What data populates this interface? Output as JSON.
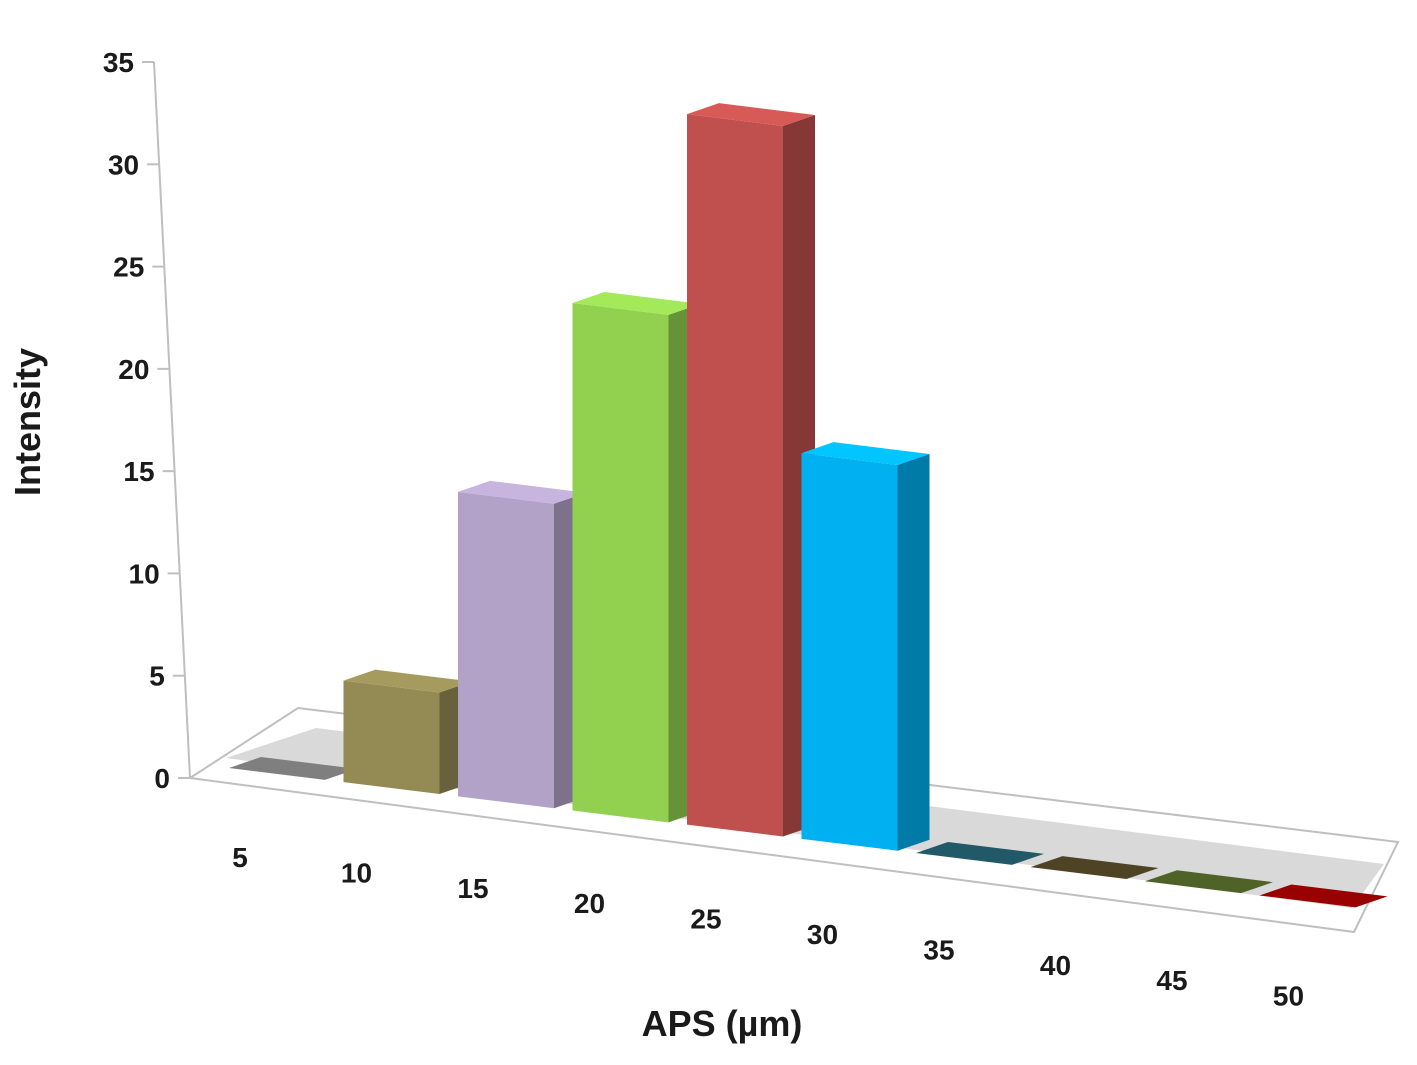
{
  "chart_data": {
    "type": "bar",
    "style": "3d-column",
    "xlabel": "APS (µm)",
    "ylabel": "Intensity",
    "categories": [
      "5",
      "10",
      "15",
      "20",
      "25",
      "30",
      "35",
      "40",
      "45",
      "50"
    ],
    "values": [
      0,
      5,
      15,
      25,
      35,
      19,
      0,
      0,
      0,
      0
    ],
    "ylim": [
      0,
      35
    ],
    "yticks": [
      "0",
      "5",
      "10",
      "15",
      "20",
      "25",
      "30",
      "35"
    ],
    "bar_colors": [
      "#7f7f7f",
      "#948a54",
      "#b3a2c7",
      "#92d050",
      "#c0504d",
      "#00b0f0",
      "#215968",
      "#4f4326",
      "#4f6228",
      "#990000"
    ],
    "grid": false,
    "legend": "none"
  }
}
